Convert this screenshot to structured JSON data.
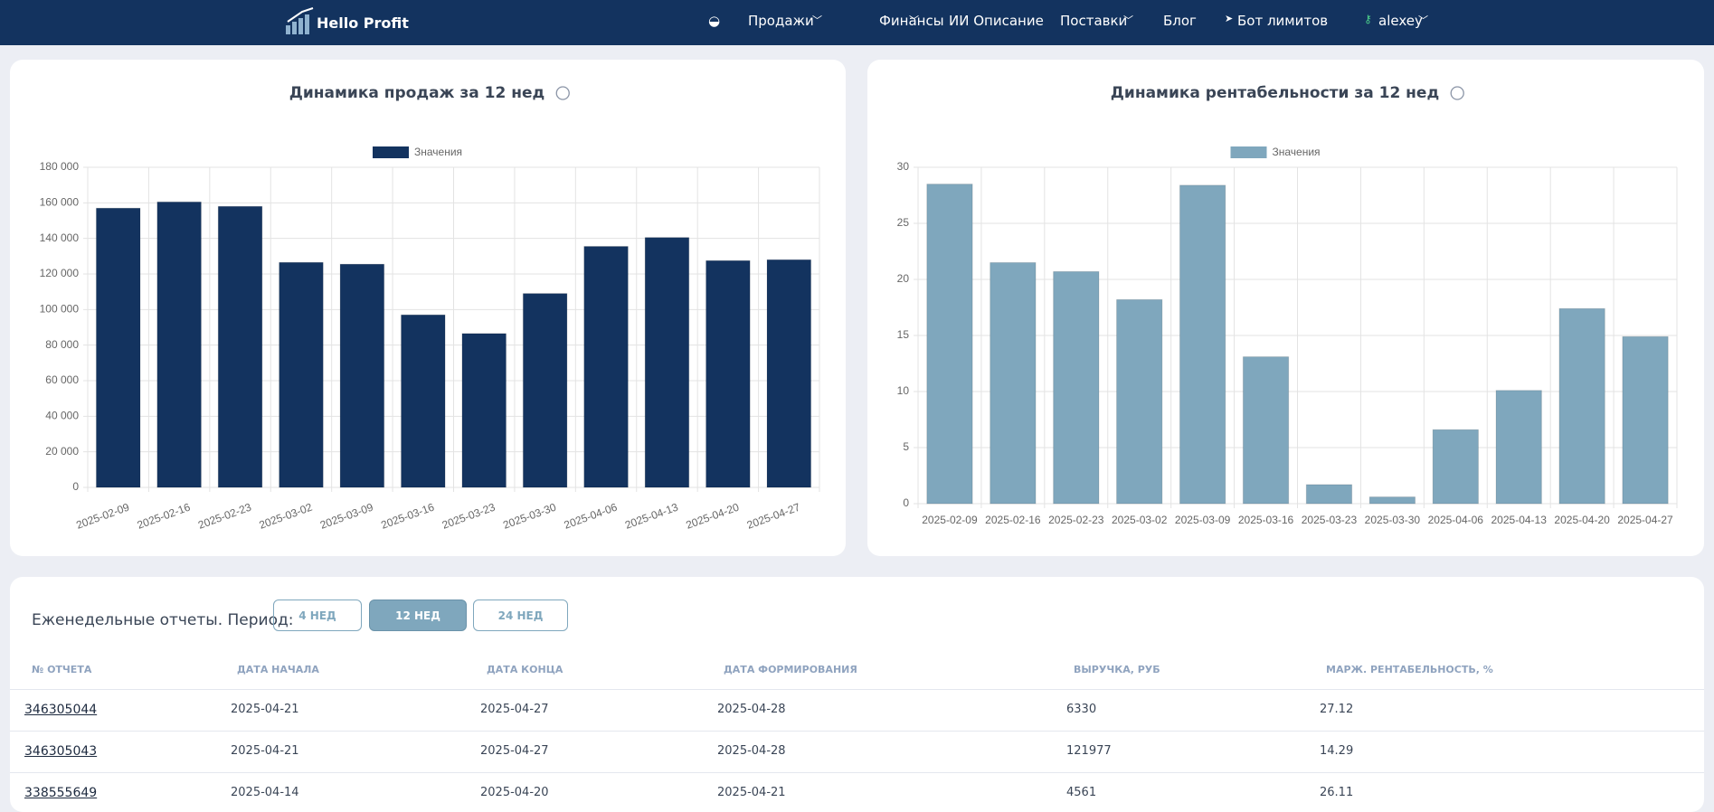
{
  "nav": {
    "logo": "Hello Profit",
    "items": [
      "Продажи",
      "Финансы",
      "ИИ Описание",
      "Поставки",
      "Блог",
      "Бот лимитов"
    ],
    "user": "alexey"
  },
  "chart_data": [
    {
      "type": "bar",
      "title": "Динамика продаж за 12 нед",
      "legend": "Значения",
      "color": "#13335f",
      "categories": [
        "2025-02-09",
        "2025-02-16",
        "2025-02-23",
        "2025-03-02",
        "2025-03-09",
        "2025-03-16",
        "2025-03-23",
        "2025-03-30",
        "2025-04-06",
        "2025-04-13",
        "2025-04-20",
        "2025-04-27"
      ],
      "values": [
        157000,
        160500,
        158000,
        126500,
        125500,
        97000,
        86500,
        109000,
        135500,
        140500,
        127500,
        128000
      ],
      "ylim": [
        0,
        180000
      ],
      "yticks": [
        0,
        {
          "value": 20000,
          "label": "20 000"
        },
        {
          "value": 40000,
          "label": "40 000"
        },
        {
          "value": 60000,
          "label": "60 000"
        },
        {
          "value": 80000,
          "label": "80 000"
        },
        {
          "value": 100000,
          "label": "100 000"
        },
        {
          "value": 120000,
          "label": "120 000"
        },
        {
          "value": 140000,
          "label": "140 000"
        },
        {
          "value": 160000,
          "label": "160 000"
        },
        {
          "value": 180000,
          "label": "180 000"
        }
      ],
      "grid": true
    },
    {
      "type": "bar",
      "title": "Динамика рентабельности за 12 нед",
      "legend": "Значения",
      "color": "#7fa7bd",
      "categories": [
        "2025-02-09",
        "2025-02-16",
        "2025-02-23",
        "2025-03-02",
        "2025-03-09",
        "2025-03-16",
        "2025-03-23",
        "2025-03-30",
        "2025-04-06",
        "2025-04-13",
        "2025-04-20",
        "2025-04-27"
      ],
      "values": [
        28.5,
        21.5,
        20.7,
        18.2,
        28.4,
        13.1,
        1.7,
        0.6,
        6.6,
        10.1,
        17.4,
        14.9
      ],
      "ylim": [
        0,
        30
      ],
      "yticks": [
        0,
        5,
        10,
        15,
        20,
        25,
        30
      ],
      "grid": true
    }
  ],
  "reports": {
    "title": "Еженедельные отчеты. Период:",
    "periods": [
      "4 НЕД",
      "12 НЕД",
      "24 НЕД"
    ],
    "table": {
      "header": [
        "№ ОТЧЕТА",
        "ДАТА НАЧАЛА",
        "ДАТА КОНЦА",
        "ДАТА ФОРМИРОВАНИЯ",
        "ВЫРУЧКА, РУБ",
        "МАРЖ. РЕНТАБЕЛЬНОСТЬ, %"
      ],
      "rows": [
        [
          "346305044",
          "2025-04-21",
          "2025-04-27",
          "2025-04-28",
          "6330",
          "27.12"
        ],
        [
          "346305043",
          "2025-04-21",
          "2025-04-27",
          "2025-04-28",
          "121977",
          "14.29"
        ],
        [
          "338555649",
          "2025-04-14",
          "2025-04-20",
          "2025-04-21",
          "4561",
          "26.11"
        ]
      ]
    }
  }
}
